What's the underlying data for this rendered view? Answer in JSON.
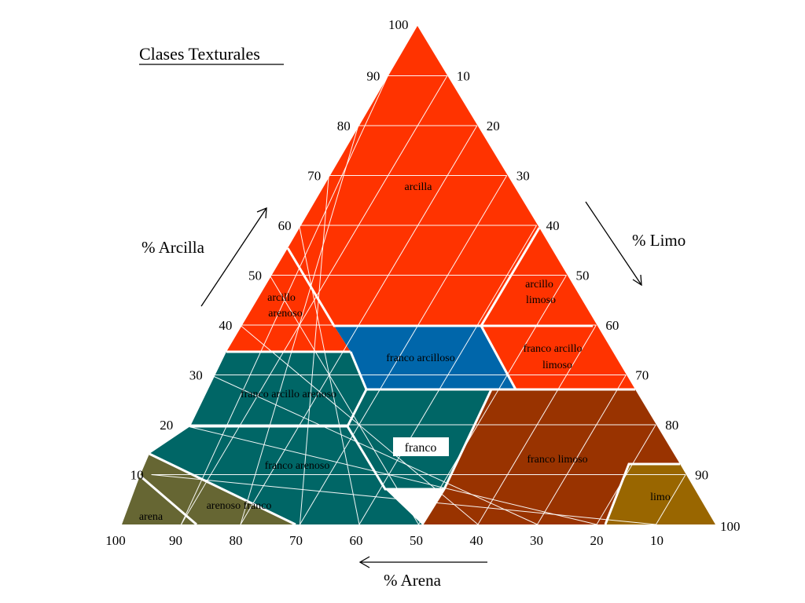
{
  "title": "Clases Texturales",
  "axes": {
    "clay": {
      "title": "% Arcilla",
      "ticks": [
        "10",
        "20",
        "30",
        "40",
        "50",
        "60",
        "70",
        "80",
        "90",
        "100"
      ]
    },
    "silt": {
      "title": "% Limo",
      "ticks": [
        "10",
        "20",
        "30",
        "40",
        "50",
        "60",
        "70",
        "80",
        "90",
        "100"
      ]
    },
    "sand": {
      "title": "% Arena",
      "ticks": [
        "100",
        "90",
        "80",
        "70",
        "60",
        "50",
        "40",
        "30",
        "20",
        "10"
      ]
    }
  },
  "colors": {
    "clay": "#ff3300",
    "loam": "#006666",
    "clay_loam": "#0066aa",
    "silt_loam": "#993300",
    "sand": "#666633",
    "silt": "#996600",
    "lines": "#ffffff"
  },
  "classes": {
    "arcilla": "arcilla",
    "arcillo_arenoso": [
      "arcillo",
      "arenoso"
    ],
    "arcillo_limoso": [
      "arcillo",
      "limoso"
    ],
    "franco_arcilloso": "franco arcilloso",
    "franco_arcillo_limoso": [
      "franco arcillo",
      "limoso"
    ],
    "franco_arcillo_arenoso": "franco arcillo arenoso",
    "franco": "franco",
    "franco_arenoso": "franco arenoso",
    "franco_limoso": "franco limoso",
    "arenoso_franco": "arenoso franco",
    "arena": "arena",
    "limo": "limo"
  }
}
